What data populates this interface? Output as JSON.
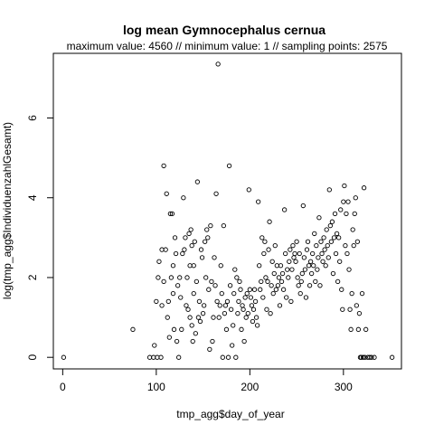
{
  "chart_data": {
    "type": "scatter",
    "title": "log mean Gymnocephalus cernua",
    "subtitle": "maximum value: 4560  //  minimum value: 1  // sampling points: 2575",
    "xlabel": "tmp_agg$day_of_year",
    "ylabel": "log(tmp_agg$IndividuenzahlGesamt)",
    "xlim": [
      -10,
      362
    ],
    "ylim": [
      -0.29,
      7.62
    ],
    "xticks": [
      0,
      100,
      200,
      300
    ],
    "yticks": [
      0,
      2,
      4,
      6
    ],
    "xtick_labels": [
      "0",
      "100",
      "200",
      "300"
    ],
    "ytick_labels": [
      "0",
      "2",
      "4",
      "6"
    ],
    "grid": false,
    "marker": "open-circle",
    "points": [
      [
        1,
        0
      ],
      [
        75,
        0.7
      ],
      [
        93,
        0
      ],
      [
        97,
        0
      ],
      [
        98,
        0.3
      ],
      [
        100,
        1.4
      ],
      [
        101,
        0
      ],
      [
        102,
        2.0
      ],
      [
        103,
        2.4
      ],
      [
        105,
        0
      ],
      [
        106,
        2.7
      ],
      [
        106,
        1.3
      ],
      [
        108,
        4.8
      ],
      [
        108,
        1.9
      ],
      [
        110,
        2.7
      ],
      [
        111,
        4.1
      ],
      [
        112,
        1.0
      ],
      [
        113,
        1.4
      ],
      [
        114,
        0.5
      ],
      [
        115,
        3.6
      ],
      [
        116,
        2.0
      ],
      [
        117,
        3.6
      ],
      [
        118,
        2.3
      ],
      [
        118,
        1.6
      ],
      [
        119,
        0.7
      ],
      [
        120,
        3.0
      ],
      [
        121,
        2.6
      ],
      [
        122,
        0.4
      ],
      [
        123,
        1.8
      ],
      [
        124,
        0
      ],
      [
        125,
        2.0
      ],
      [
        126,
        1.5
      ],
      [
        127,
        0.7
      ],
      [
        128,
        2.6
      ],
      [
        129,
        4.0
      ],
      [
        130,
        2.7
      ],
      [
        131,
        3.0
      ],
      [
        132,
        1.3
      ],
      [
        133,
        2.0
      ],
      [
        134,
        1.2
      ],
      [
        135,
        3.1
      ],
      [
        136,
        2.3
      ],
      [
        136,
        1.0
      ],
      [
        137,
        3.2
      ],
      [
        138,
        2.8
      ],
      [
        138,
        0.8
      ],
      [
        139,
        0.4
      ],
      [
        140,
        2.3
      ],
      [
        140,
        1.6
      ],
      [
        141,
        2.9
      ],
      [
        142,
        0.6
      ],
      [
        143,
        1.9
      ],
      [
        144,
        4.4
      ],
      [
        145,
        1.0
      ],
      [
        146,
        1.4
      ],
      [
        147,
        0.9
      ],
      [
        148,
        2.7
      ],
      [
        149,
        2.5
      ],
      [
        150,
        1.1
      ],
      [
        151,
        1.3
      ],
      [
        152,
        2.9
      ],
      [
        153,
        2.0
      ],
      [
        154,
        3.2
      ],
      [
        155,
        3.0
      ],
      [
        156,
        1.7
      ],
      [
        157,
        0.2
      ],
      [
        158,
        3.3
      ],
      [
        159,
        1.9
      ],
      [
        160,
        0.4
      ],
      [
        161,
        1.0
      ],
      [
        162,
        2.5
      ],
      [
        163,
        1.8
      ],
      [
        164,
        4.1
      ],
      [
        165,
        1.4
      ],
      [
        166,
        7.35
      ],
      [
        167,
        1.0
      ],
      [
        168,
        1.3
      ],
      [
        169,
        2.3
      ],
      [
        170,
        1.6
      ],
      [
        171,
        0
      ],
      [
        172,
        3.3
      ],
      [
        173,
        1.1
      ],
      [
        174,
        1.3
      ],
      [
        175,
        0.7
      ],
      [
        176,
        1.4
      ],
      [
        177,
        0
      ],
      [
        178,
        4.8
      ],
      [
        179,
        1.8
      ],
      [
        180,
        1.2
      ],
      [
        181,
        0.3
      ],
      [
        182,
        0.8
      ],
      [
        183,
        1.6
      ],
      [
        184,
        2.2
      ],
      [
        185,
        0
      ],
      [
        186,
        2.0
      ],
      [
        187,
        1.1
      ],
      [
        188,
        1.4
      ],
      [
        189,
        1.9
      ],
      [
        190,
        1.7
      ],
      [
        191,
        0.7
      ],
      [
        192,
        1.3
      ],
      [
        193,
        1.2
      ],
      [
        194,
        0.4
      ],
      [
        195,
        1.5
      ],
      [
        196,
        1.0
      ],
      [
        197,
        1.6
      ],
      [
        198,
        1.1
      ],
      [
        199,
        4.2
      ],
      [
        200,
        1.7
      ],
      [
        201,
        1.5
      ],
      [
        202,
        1.3
      ],
      [
        203,
        0.9
      ],
      [
        204,
        1.2
      ],
      [
        205,
        1.7
      ],
      [
        206,
        1.4
      ],
      [
        207,
        1.0
      ],
      [
        208,
        0.8
      ],
      [
        209,
        3.9
      ],
      [
        210,
        2.3
      ],
      [
        211,
        1.7
      ],
      [
        212,
        1.9
      ],
      [
        213,
        3.0
      ],
      [
        214,
        1.5
      ],
      [
        215,
        2.6
      ],
      [
        216,
        2.9
      ],
      [
        217,
        2.0
      ],
      [
        218,
        1.2
      ],
      [
        219,
        1.9
      ],
      [
        220,
        2.7
      ],
      [
        221,
        3.4
      ],
      [
        222,
        1.1
      ],
      [
        223,
        1.8
      ],
      [
        224,
        2.4
      ],
      [
        225,
        1.6
      ],
      [
        226,
        2.1
      ],
      [
        227,
        2.8
      ],
      [
        228,
        1.7
      ],
      [
        229,
        2.3
      ],
      [
        230,
        1.8
      ],
      [
        231,
        2.0
      ],
      [
        232,
        1.3
      ],
      [
        233,
        2.3
      ],
      [
        234,
        1.9
      ],
      [
        235,
        2.1
      ],
      [
        236,
        1.7
      ],
      [
        237,
        3.7
      ],
      [
        238,
        2.6
      ],
      [
        239,
        1.5
      ],
      [
        240,
        2.2
      ],
      [
        241,
        2.0
      ],
      [
        242,
        2.4
      ],
      [
        243,
        2.7
      ],
      [
        244,
        1.4
      ],
      [
        245,
        2.2
      ],
      [
        246,
        2.8
      ],
      [
        247,
        2.5
      ],
      [
        248,
        2.6
      ],
      [
        249,
        2.4
      ],
      [
        250,
        2.9
      ],
      [
        251,
        2.0
      ],
      [
        252,
        1.8
      ],
      [
        253,
        2.6
      ],
      [
        254,
        1.6
      ],
      [
        255,
        1.9
      ],
      [
        256,
        2.1
      ],
      [
        257,
        3.8
      ],
      [
        258,
        2.5
      ],
      [
        259,
        2.2
      ],
      [
        260,
        1.5
      ],
      [
        261,
        2.7
      ],
      [
        262,
        2.9
      ],
      [
        263,
        2.3
      ],
      [
        264,
        1.8
      ],
      [
        265,
        2.4
      ],
      [
        266,
        2.1
      ],
      [
        267,
        2.6
      ],
      [
        268,
        2.3
      ],
      [
        269,
        3.1
      ],
      [
        270,
        1.9
      ],
      [
        271,
        2.8
      ],
      [
        272,
        2.2
      ],
      [
        273,
        2.5
      ],
      [
        274,
        3.5
      ],
      [
        275,
        1.8
      ],
      [
        276,
        2.9
      ],
      [
        277,
        2.6
      ],
      [
        278,
        2.4
      ],
      [
        279,
        3.0
      ],
      [
        280,
        2.7
      ],
      [
        281,
        2.3
      ],
      [
        282,
        3.2
      ],
      [
        283,
        2.8
      ],
      [
        284,
        2.5
      ],
      [
        285,
        4.2
      ],
      [
        286,
        3.3
      ],
      [
        287,
        2.9
      ],
      [
        288,
        3.4
      ],
      [
        289,
        2.1
      ],
      [
        290,
        3.0
      ],
      [
        291,
        3.6
      ],
      [
        292,
        2.6
      ],
      [
        293,
        3.1
      ],
      [
        294,
        1.9
      ],
      [
        295,
        3.0
      ],
      [
        296,
        2.4
      ],
      [
        297,
        3.7
      ],
      [
        298,
        1.7
      ],
      [
        299,
        1.2
      ],
      [
        300,
        3.9
      ],
      [
        301,
        4.3
      ],
      [
        302,
        2.8
      ],
      [
        303,
        3.6
      ],
      [
        304,
        2.6
      ],
      [
        305,
        3.9
      ],
      [
        306,
        2.2
      ],
      [
        307,
        1.2
      ],
      [
        308,
        0.7
      ],
      [
        309,
        1.6
      ],
      [
        310,
        3.2
      ],
      [
        311,
        2.8
      ],
      [
        312,
        3.6
      ],
      [
        313,
        4.0
      ],
      [
        314,
        1.3
      ],
      [
        315,
        2.9
      ],
      [
        316,
        0.7
      ],
      [
        317,
        1.1
      ],
      [
        318,
        0
      ],
      [
        319,
        0
      ],
      [
        320,
        1.6
      ],
      [
        321,
        0
      ],
      [
        322,
        4.25
      ],
      [
        323,
        0
      ],
      [
        324,
        0.7
      ],
      [
        326,
        0
      ],
      [
        328,
        0
      ],
      [
        330,
        0
      ],
      [
        333,
        0
      ],
      [
        352,
        0
      ]
    ]
  }
}
